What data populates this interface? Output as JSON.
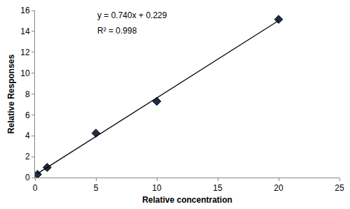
{
  "chart_data": {
    "type": "scatter",
    "x_label": "Relative concentration",
    "y_label": "Relative Responses",
    "annotations": [
      "y = 0.740x + 0.229",
      "R² = 0.998"
    ],
    "series": [
      {
        "type": "scatter",
        "marker": "diamond",
        "color": "#1f2d4a",
        "x": [
          0.2,
          1,
          5,
          10,
          20
        ],
        "values": [
          0.3,
          0.97,
          4.25,
          7.3,
          15.15
        ]
      },
      {
        "type": "line",
        "line_style": "solid",
        "color": "#000000",
        "x": [
          0.2,
          20
        ],
        "values": [
          0.377,
          15.029
        ]
      }
    ],
    "xlim": [
      0,
      25
    ],
    "xticks": [
      0,
      5,
      10,
      15,
      20,
      25
    ],
    "ylim": [
      0,
      16
    ],
    "yticks": [
      0,
      2,
      4,
      6,
      8,
      10,
      12,
      14,
      16
    ],
    "grid": false
  }
}
